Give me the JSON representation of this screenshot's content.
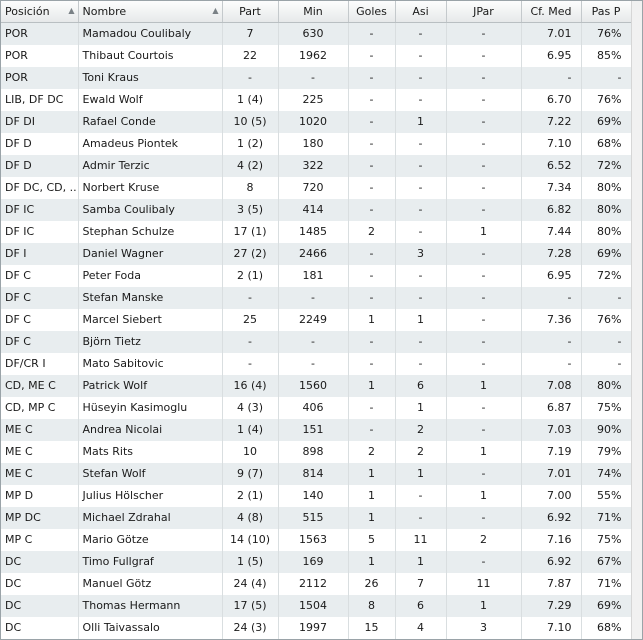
{
  "columns": [
    "Posición",
    "Nombre",
    "Part",
    "Min",
    "Goles",
    "Asi",
    "JPar",
    "Cf. Med",
    "Pas P"
  ],
  "rows": [
    [
      "POR",
      "Mamadou Coulibaly",
      "7",
      "630",
      "-",
      "-",
      "-",
      "7.01",
      "76%"
    ],
    [
      "POR",
      "Thibaut Courtois",
      "22",
      "1962",
      "-",
      "-",
      "-",
      "6.95",
      "85%"
    ],
    [
      "POR",
      "Toni Kraus",
      "-",
      "-",
      "-",
      "-",
      "-",
      "-",
      "-"
    ],
    [
      "LIB, DF DC",
      "Ewald Wolf",
      "1 (4)",
      "225",
      "-",
      "-",
      "-",
      "6.70",
      "76%"
    ],
    [
      "DF DI",
      "Rafael Conde",
      "10 (5)",
      "1020",
      "-",
      "1",
      "-",
      "7.22",
      "69%"
    ],
    [
      "DF D",
      "Amadeus Piontek",
      "1 (2)",
      "180",
      "-",
      "-",
      "-",
      "7.10",
      "68%"
    ],
    [
      "DF D",
      "Admir Terzic",
      "4 (2)",
      "322",
      "-",
      "-",
      "-",
      "6.52",
      "72%"
    ],
    [
      "DF DC, CD, ..",
      "Norbert Kruse",
      "8",
      "720",
      "-",
      "-",
      "-",
      "7.34",
      "80%"
    ],
    [
      "DF IC",
      "Samba Coulibaly",
      "3 (5)",
      "414",
      "-",
      "-",
      "-",
      "6.82",
      "80%"
    ],
    [
      "DF IC",
      "Stephan Schulze",
      "17 (1)",
      "1485",
      "2",
      "-",
      "1",
      "7.44",
      "80%"
    ],
    [
      "DF I",
      "Daniel Wagner",
      "27 (2)",
      "2466",
      "-",
      "3",
      "-",
      "7.28",
      "69%"
    ],
    [
      "DF C",
      "Peter Foda",
      "2 (1)",
      "181",
      "-",
      "-",
      "-",
      "6.95",
      "72%"
    ],
    [
      "DF C",
      "Stefan Manske",
      "-",
      "-",
      "-",
      "-",
      "-",
      "-",
      "-"
    ],
    [
      "DF C",
      "Marcel Siebert",
      "25",
      "2249",
      "1",
      "1",
      "-",
      "7.36",
      "76%"
    ],
    [
      "DF C",
      "Björn Tietz",
      "-",
      "-",
      "-",
      "-",
      "-",
      "-",
      "-"
    ],
    [
      "DF/CR I",
      "Mato Sabitovic",
      "-",
      "-",
      "-",
      "-",
      "-",
      "-",
      "-"
    ],
    [
      "CD, ME C",
      "Patrick Wolf",
      "16 (4)",
      "1560",
      "1",
      "6",
      "1",
      "7.08",
      "80%"
    ],
    [
      "CD, MP C",
      "Hüseyin Kasimoglu",
      "4 (3)",
      "406",
      "-",
      "1",
      "-",
      "6.87",
      "75%"
    ],
    [
      "ME C",
      "Andrea Nicolai",
      "1 (4)",
      "151",
      "-",
      "2",
      "-",
      "7.03",
      "90%"
    ],
    [
      "ME C",
      "Mats Rits",
      "10",
      "898",
      "2",
      "2",
      "1",
      "7.19",
      "79%"
    ],
    [
      "ME C",
      "Stefan Wolf",
      "9 (7)",
      "814",
      "1",
      "1",
      "-",
      "7.01",
      "74%"
    ],
    [
      "MP D",
      "Julius Hölscher",
      "2 (1)",
      "140",
      "1",
      "-",
      "1",
      "7.00",
      "55%"
    ],
    [
      "MP DC",
      "Michael Zdrahal",
      "4 (8)",
      "515",
      "1",
      "-",
      "-",
      "6.92",
      "71%"
    ],
    [
      "MP C",
      "Mario Götze",
      "14 (10)",
      "1563",
      "5",
      "11",
      "2",
      "7.16",
      "75%"
    ],
    [
      "DC",
      "Timo Fullgraf",
      "1 (5)",
      "169",
      "1",
      "1",
      "-",
      "6.92",
      "67%"
    ],
    [
      "DC",
      "Manuel Götz",
      "24 (4)",
      "2112",
      "26",
      "7",
      "11",
      "7.87",
      "71%"
    ],
    [
      "DC",
      "Thomas Hermann",
      "17 (5)",
      "1504",
      "8",
      "6",
      "1",
      "7.29",
      "69%"
    ],
    [
      "DC",
      "Olli Taivassalo",
      "24 (3)",
      "1997",
      "15",
      "4",
      "3",
      "7.10",
      "68%"
    ]
  ]
}
